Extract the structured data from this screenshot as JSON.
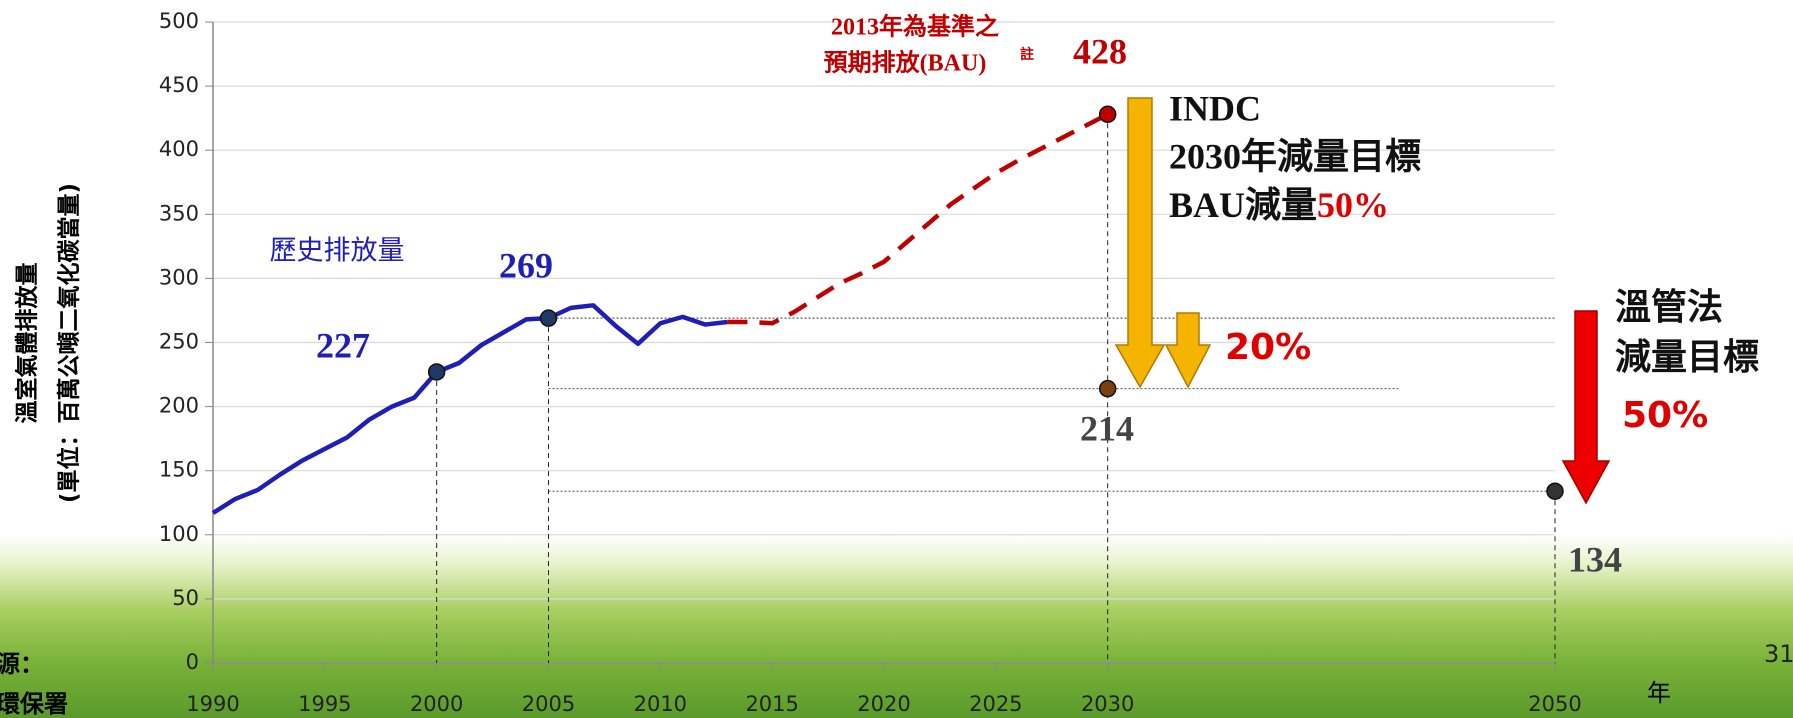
{
  "chart_data": {
    "type": "line",
    "x": [
      1990,
      1991,
      1992,
      1993,
      1994,
      1995,
      1996,
      1997,
      1998,
      1999,
      2000,
      2001,
      2002,
      2003,
      2004,
      2005,
      2006,
      2007,
      2008,
      2009,
      2010,
      2011,
      2012,
      2013,
      2014,
      2015,
      2016,
      2017,
      2018,
      2019,
      2020,
      2021,
      2022,
      2023,
      2024,
      2025,
      2026,
      2027,
      2028,
      2029,
      2030
    ],
    "series": [
      {
        "name": "歷史排放量",
        "color": "#1f1fb8",
        "dashed": false,
        "values": [
          117,
          128,
          135,
          147,
          158,
          167,
          176,
          190,
          200,
          207,
          227,
          234,
          248,
          258,
          268,
          269,
          277,
          279,
          263,
          249,
          265,
          270,
          264,
          266,
          null,
          null,
          null,
          null,
          null,
          null,
          null,
          null,
          null,
          null,
          null,
          null,
          null,
          null,
          null,
          null,
          null
        ]
      },
      {
        "color": "#c00000",
        "dashed": true,
        "values": [
          null,
          null,
          null,
          null,
          null,
          null,
          null,
          null,
          null,
          null,
          null,
          null,
          null,
          null,
          null,
          null,
          null,
          null,
          null,
          null,
          null,
          null,
          null,
          266,
          266,
          265,
          274,
          285,
          296,
          304,
          313,
          328,
          343,
          358,
          370,
          382,
          392,
          401,
          410,
          419,
          428
        ]
      }
    ],
    "points": [
      {
        "x": 2000,
        "value": 227,
        "color": "#1f3864"
      },
      {
        "x": 2005,
        "value": 269,
        "color": "#1f3864"
      },
      {
        "x": 2030,
        "value": 428,
        "color": "#c00000"
      },
      {
        "x": 2030,
        "value": 214,
        "color": "#7b3f10"
      },
      {
        "x": 2050,
        "value": 134,
        "color": "#333333"
      }
    ],
    "xlim": [
      1990,
      2050
    ],
    "xticks": [
      1990,
      1995,
      2000,
      2005,
      2010,
      2015,
      2020,
      2025,
      2030,
      2050
    ],
    "ylim": [
      0,
      500
    ],
    "yticks": [
      0,
      50,
      100,
      150,
      200,
      250,
      300,
      350,
      400,
      450,
      500
    ],
    "grid": true,
    "y_label_lines": [
      "溫室氣體排放量",
      "(單位：百萬公噸二氧化碳當量)"
    ],
    "x_label": "年",
    "bau_note": [
      "2013年為基準之",
      "預期排放(BAU)",
      "註"
    ],
    "indc": [
      "INDC",
      "2030年減量目標",
      "BAU減量",
      "50%"
    ],
    "reduction_20": "20%",
    "law_target": [
      "溫管法",
      "減量目標",
      "50%"
    ],
    "page_number": "31",
    "source": [
      "源：",
      "環保署"
    ]
  }
}
